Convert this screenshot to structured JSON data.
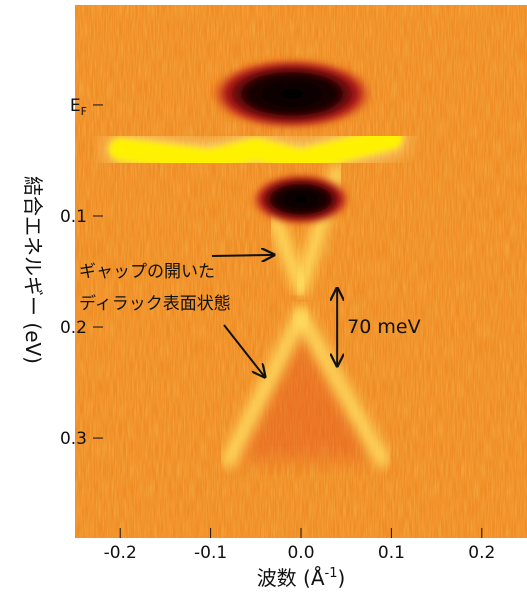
{
  "chart_data": {
    "type": "heatmap",
    "description_kind": "ARPES band map",
    "xlabel": "波数 (Å⁻¹)",
    "xlabel_parts": {
      "base": "波数 (Å",
      "sup": "-1",
      "close": ")"
    },
    "ylabel": "結合エネルギー (eV)",
    "xlim": [
      -0.25,
      0.25
    ],
    "ylim": [
      -0.09,
      0.39
    ],
    "y_inverted": true,
    "x_ticks": [
      {
        "value": -0.2,
        "label": "-0.2"
      },
      {
        "value": -0.1,
        "label": "-0.1"
      },
      {
        "value": 0.0,
        "label": "0.0"
      },
      {
        "value": 0.1,
        "label": "0.1"
      },
      {
        "value": 0.2,
        "label": "0.2"
      }
    ],
    "y_ticks": [
      {
        "value": 0.0,
        "label": "E",
        "label_sub": "F"
      },
      {
        "value": 0.1,
        "label": "0.1"
      },
      {
        "value": 0.2,
        "label": "0.2"
      },
      {
        "value": 0.3,
        "label": "0.3"
      }
    ],
    "colormap": [
      "#e8781a",
      "#f29a2a",
      "#f7c040",
      "#fff200",
      "#c8241c",
      "#000000"
    ],
    "background_color": "#f08c24",
    "features": [
      {
        "kind": "bright-band",
        "x": [
          -0.2,
          -0.1,
          -0.05,
          0.0,
          0.05,
          0.1
        ],
        "y": [
          0.04,
          0.05,
          0.04,
          0.05,
          0.04,
          0.03
        ]
      },
      {
        "kind": "dark-pocket-upper",
        "center": [
          -0.01,
          -0.01
        ]
      },
      {
        "kind": "dark-pocket-lower",
        "center": [
          0.0,
          0.085
        ]
      },
      {
        "kind": "upper-cone",
        "apex": [
          0.0,
          0.165
        ],
        "top_left": [
          -0.03,
          0.1
        ],
        "top_right": [
          0.04,
          0.06
        ]
      },
      {
        "kind": "lower-cone",
        "apex": [
          0.0,
          0.19
        ],
        "bottom_left": [
          -0.08,
          0.32
        ],
        "bottom_right": [
          0.09,
          0.32
        ]
      }
    ],
    "annotations": {
      "gap_label": "70 meV",
      "gap_range": [
        0.165,
        0.235
      ],
      "gap_x": 0.04,
      "state_label_line1": "ギャップの開いた",
      "state_label_line2": "ディラック表面状態",
      "arrow_upper_target": [
        -0.03,
        0.135
      ],
      "arrow_lower_target": [
        -0.04,
        0.245
      ]
    }
  }
}
